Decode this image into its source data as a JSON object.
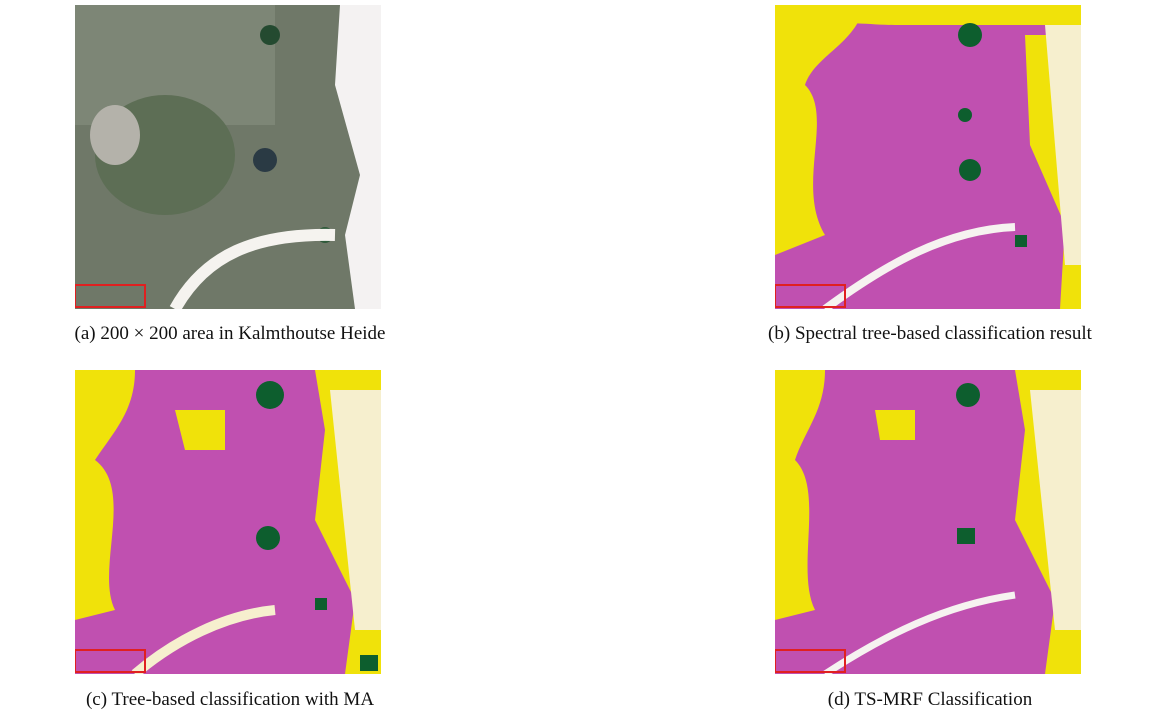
{
  "figure": {
    "panels": [
      {
        "caption": "(a) 200 × 200 area in Kalmthoutse Heide"
      },
      {
        "caption": "(b) Spectral tree-based classification result"
      },
      {
        "caption": "(c) Tree-based classification with MA"
      },
      {
        "caption": "(d) TS-MRF Classification"
      }
    ]
  }
}
